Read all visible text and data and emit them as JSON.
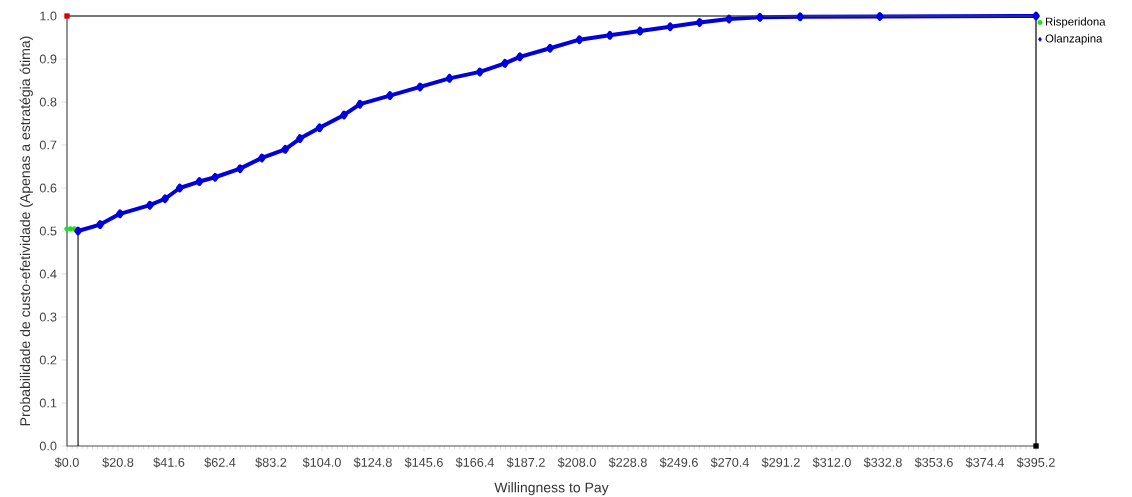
{
  "chart_data": {
    "type": "line",
    "xlabel": "Willingness to Pay",
    "ylabel": "Probabilidade de custo-efetividade (Apenas a estratégia ótima)",
    "xlim": [
      0,
      395.2
    ],
    "ylim": [
      0,
      1
    ],
    "xticks": [
      {
        "value": 0,
        "label": "$0.0"
      },
      {
        "value": 20.8,
        "label": "$20.8"
      },
      {
        "value": 41.6,
        "label": "$41.6"
      },
      {
        "value": 62.4,
        "label": "$62.4"
      },
      {
        "value": 83.2,
        "label": "$83.2"
      },
      {
        "value": 104.0,
        "label": "$104.0"
      },
      {
        "value": 124.8,
        "label": "$124.8"
      },
      {
        "value": 145.6,
        "label": "$145.6"
      },
      {
        "value": 166.4,
        "label": "$166.4"
      },
      {
        "value": 187.2,
        "label": "$187.2"
      },
      {
        "value": 208.0,
        "label": "$208.0"
      },
      {
        "value": 228.8,
        "label": "$228.8"
      },
      {
        "value": 249.6,
        "label": "$249.6"
      },
      {
        "value": 270.4,
        "label": "$270.4"
      },
      {
        "value": 291.2,
        "label": "$291.2"
      },
      {
        "value": 312.0,
        "label": "$312.0"
      },
      {
        "value": 332.8,
        "label": "$332.8"
      },
      {
        "value": 353.6,
        "label": "$353.6"
      },
      {
        "value": 374.4,
        "label": "$374.4"
      },
      {
        "value": 395.2,
        "label": "$395.2"
      }
    ],
    "yticks": [
      {
        "value": 0,
        "label": "0.0"
      },
      {
        "value": 0.1,
        "label": "0.1"
      },
      {
        "value": 0.2,
        "label": "0.2"
      },
      {
        "value": 0.3,
        "label": "0.3"
      },
      {
        "value": 0.4,
        "label": "0.4"
      },
      {
        "value": 0.5,
        "label": "0.5"
      },
      {
        "value": 0.6,
        "label": "0.6"
      },
      {
        "value": 0.7,
        "label": "0.7"
      },
      {
        "value": 0.8,
        "label": "0.8"
      },
      {
        "value": 0.9,
        "label": "0.9"
      },
      {
        "value": 1.0,
        "label": "1.0"
      }
    ],
    "legend": "top right",
    "series": [
      {
        "name": "Risperidona",
        "type": "scatter",
        "color": "#22dd22",
        "marker": "circle",
        "x": [
          0,
          1.5,
          3
        ],
        "values": [
          0.505,
          0.505,
          0.505
        ]
      },
      {
        "name": "Olanzapina",
        "color": "#0000dd",
        "marker": "diamond",
        "x": [
          4.5,
          13.5,
          21.6,
          33.8,
          40,
          46,
          54,
          60.4,
          70.6,
          79.5,
          89,
          95,
          103,
          113,
          119.5,
          131.7,
          144,
          156,
          168.4,
          178.6,
          184.7,
          197,
          209,
          221.4,
          233.7,
          246,
          258,
          270,
          282.6,
          299,
          331.5,
          395.2
        ],
        "values": [
          0.5,
          0.515,
          0.54,
          0.56,
          0.575,
          0.6,
          0.615,
          0.625,
          0.645,
          0.67,
          0.69,
          0.715,
          0.74,
          0.77,
          0.795,
          0.815,
          0.835,
          0.855,
          0.87,
          0.89,
          0.905,
          0.925,
          0.945,
          0.955,
          0.965,
          0.975,
          0.985,
          0.993,
          0.997,
          0.998,
          0.999,
          1.0
        ]
      },
      {
        "type": "line",
        "color": "#000000",
        "marker": "none",
        "x": [
          4.5,
          4.5
        ],
        "values": [
          0,
          0.5
        ]
      },
      {
        "type": "scatter",
        "color": "#dd0000",
        "marker": "square",
        "x": [
          0
        ],
        "values": [
          1.0
        ]
      },
      {
        "type": "scatter",
        "color": "#000000",
        "marker": "square",
        "x": [
          395.2
        ],
        "values": [
          0
        ]
      }
    ]
  }
}
